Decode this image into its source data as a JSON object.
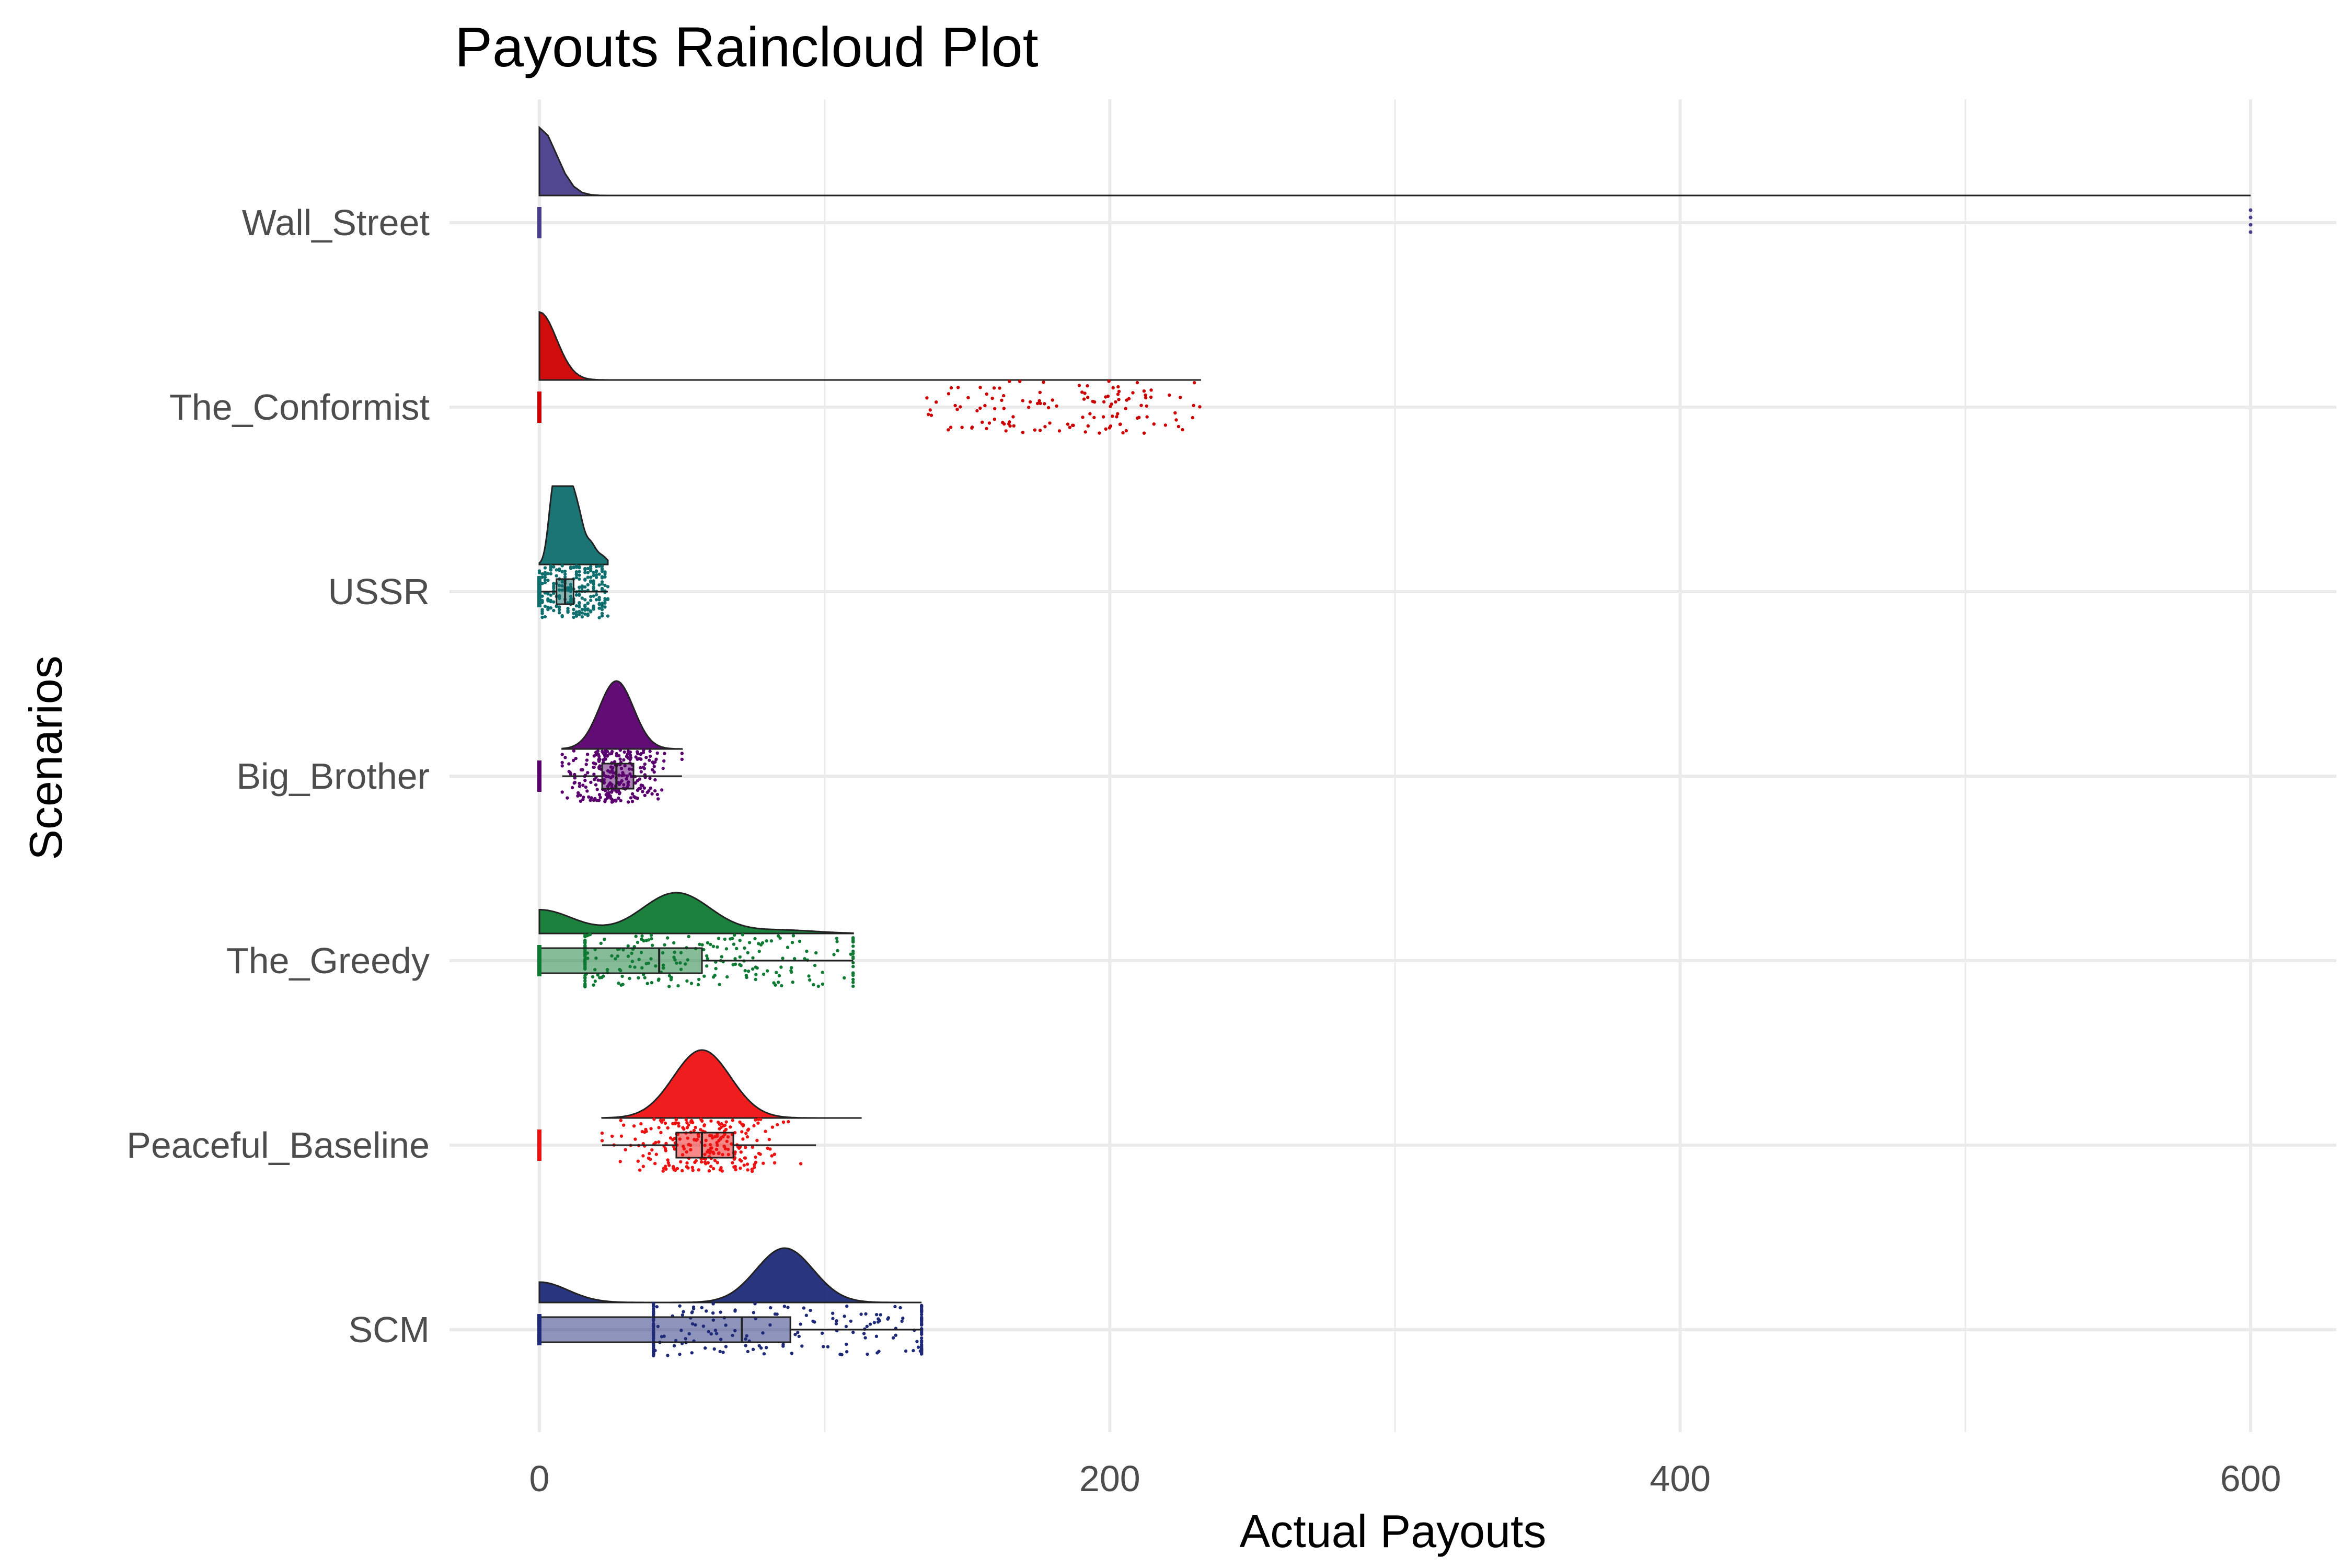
{
  "chart_data": {
    "type": "raincloud",
    "title": "Payouts Raincloud Plot",
    "xlabel": "Actual Payouts",
    "ylabel": "Scenarios",
    "xlim": [
      -30,
      630
    ],
    "x_ticks": [
      0,
      200,
      400,
      600
    ],
    "grid": true,
    "legend": "none",
    "categories": [
      "Wall_Street",
      "The_Conformist",
      "USSR",
      "Big_Brother",
      "The_Greedy",
      "Peaceful_Baseline",
      "SCM"
    ],
    "series": [
      {
        "name": "Wall_Street",
        "color": "#483d8b",
        "min": 0,
        "q1": 0,
        "median": 0,
        "q3": 0,
        "max": 0,
        "outliers": [
          600
        ],
        "points_range": [
          0,
          600
        ],
        "density_peaks": [
          [
            0,
            1.0
          ]
        ]
      },
      {
        "name": "The_Conformist",
        "color": "#cc0000",
        "min": 0,
        "q1": 0,
        "median": 0,
        "q3": 0,
        "max": 0,
        "outliers_range": [
          135,
          232
        ],
        "points_range": [
          135,
          232
        ],
        "density_peaks": [
          [
            0,
            1.0
          ]
        ]
      },
      {
        "name": "USSR",
        "color": "#0f6e6e",
        "min": 0,
        "q1": 6,
        "median": 9,
        "q3": 12,
        "max": 24,
        "points_range": [
          0,
          24
        ],
        "density_peaks": [
          [
            5,
            0.9
          ],
          [
            8,
            0.8
          ],
          [
            11,
            0.75
          ],
          [
            14,
            0.5
          ],
          [
            18,
            0.25
          ],
          [
            22,
            0.1
          ]
        ]
      },
      {
        "name": "Big_Brother",
        "color": "#5a006e",
        "min": 8,
        "q1": 22,
        "median": 27,
        "q3": 33,
        "max": 50,
        "points_range": [
          8,
          50
        ],
        "density_peaks": [
          [
            27,
            1.0
          ]
        ]
      },
      {
        "name": "The_Greedy",
        "color": "#0f7a33",
        "min": 0,
        "q1": 0,
        "median": 42,
        "q3": 57,
        "max": 110,
        "points_range": [
          16,
          110
        ],
        "density_peaks": [
          [
            0,
            0.35
          ],
          [
            48,
            0.6
          ],
          [
            85,
            0.05
          ]
        ]
      },
      {
        "name": "Peaceful_Baseline",
        "color": "#ee1111",
        "min": 22,
        "q1": 48,
        "median": 57,
        "q3": 68,
        "max": 97,
        "points_range": [
          22,
          113
        ],
        "density_peaks": [
          [
            57,
            1.0
          ]
        ]
      },
      {
        "name": "SCM",
        "color": "#1e2a78",
        "min": 0,
        "q1": 0,
        "median": 71,
        "q3": 88,
        "max": 134,
        "points_range": [
          40,
          134
        ],
        "density_peaks": [
          [
            0,
            0.3
          ],
          [
            86,
            0.8
          ]
        ]
      }
    ]
  }
}
